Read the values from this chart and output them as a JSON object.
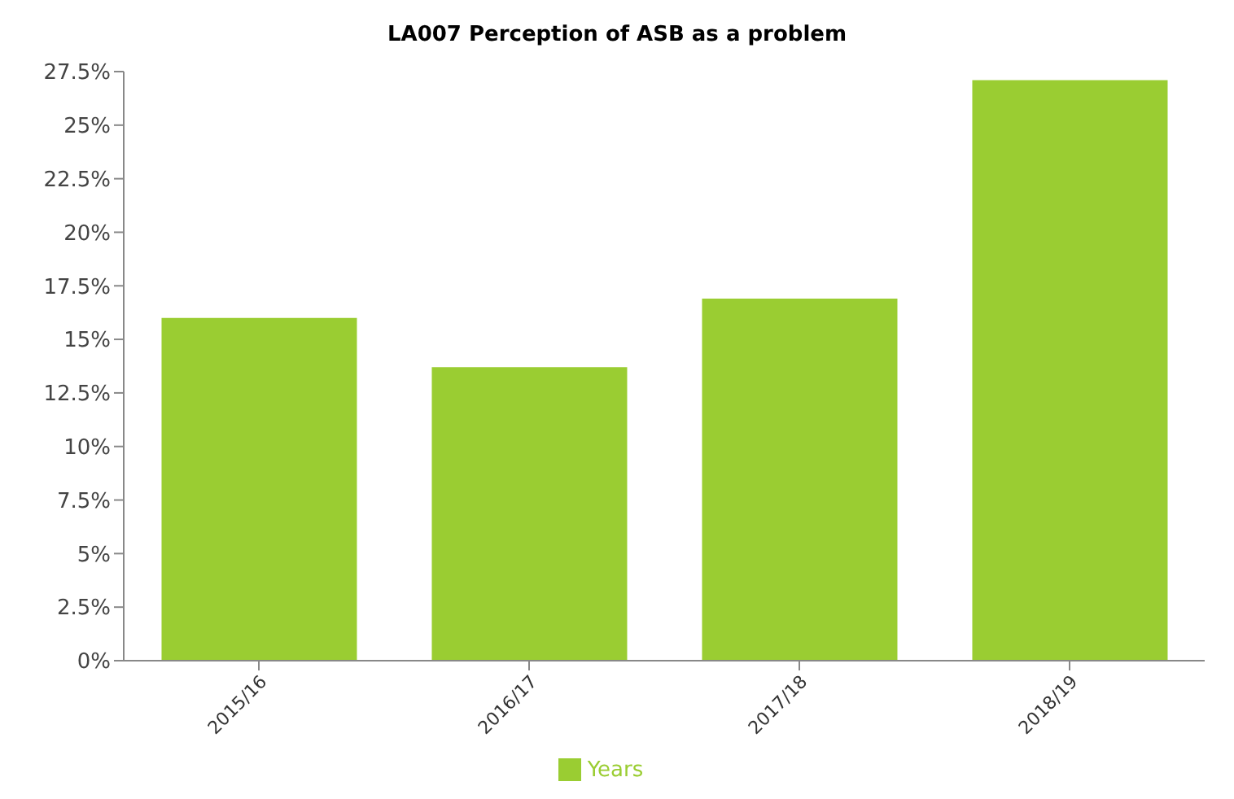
{
  "chart_data": {
    "type": "bar",
    "title": "LA007 Perception of ASB as a problem",
    "categories": [
      "2015/16",
      "2016/17",
      "2017/18",
      "2018/19"
    ],
    "series": [
      {
        "name": "Years",
        "color": "#9acd32",
        "values": [
          16.0,
          13.7,
          16.9,
          27.1
        ]
      }
    ],
    "ylim": [
      0,
      27.5
    ],
    "yticks": [
      {
        "value": 0,
        "label": "0%"
      },
      {
        "value": 2.5,
        "label": "2.5%"
      },
      {
        "value": 5,
        "label": "5%"
      },
      {
        "value": 7.5,
        "label": "7.5%"
      },
      {
        "value": 10,
        "label": "10%"
      },
      {
        "value": 12.5,
        "label": "12.5%"
      },
      {
        "value": 15,
        "label": "15%"
      },
      {
        "value": 17.5,
        "label": "17.5%"
      },
      {
        "value": 20,
        "label": "20%"
      },
      {
        "value": 22.5,
        "label": "22.5%"
      },
      {
        "value": 25,
        "label": "25%"
      },
      {
        "value": 27.5,
        "label": "27.5%"
      }
    ],
    "grid": false,
    "legend": "bottom"
  }
}
